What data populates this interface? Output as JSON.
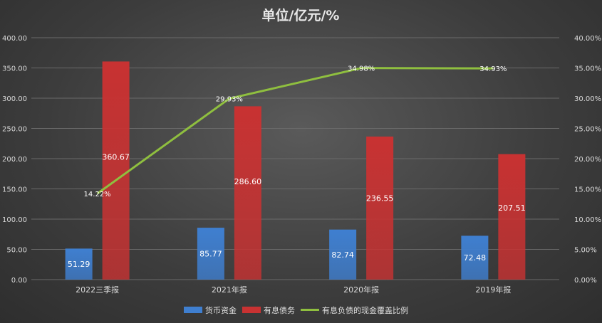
{
  "chart_data": {
    "type": "bar",
    "title": "单位/亿元/%",
    "categories": [
      "2022三季报",
      "2021年报",
      "2020年报",
      "2019年报"
    ],
    "series": [
      {
        "name": "货币资金",
        "kind": "bar",
        "axis": "left",
        "color": "#3f7fd0",
        "values": [
          51.29,
          85.77,
          82.74,
          72.48
        ],
        "labels": [
          "51.29",
          "85.77",
          "82.74",
          "72.48"
        ]
      },
      {
        "name": "有息债务",
        "kind": "bar",
        "axis": "left",
        "color": "#c83232",
        "values": [
          360.67,
          286.6,
          236.55,
          207.51
        ],
        "labels": [
          "360.67",
          "286.60",
          "236.55",
          "207.51"
        ]
      },
      {
        "name": "有息负债的现金覆盖比例",
        "kind": "line",
        "axis": "right",
        "color": "#8fbf3f",
        "values": [
          14.22,
          29.93,
          34.98,
          34.93
        ],
        "labels": [
          "14.22%",
          "29.93%",
          "34.98%",
          "34.93%"
        ]
      }
    ],
    "ylim": [
      0,
      400
    ],
    "y2lim": [
      0,
      40
    ],
    "y_ticks": [
      "0.00",
      "50.00",
      "100.00",
      "150.00",
      "200.00",
      "250.00",
      "300.00",
      "350.00",
      "400.00"
    ],
    "y2_ticks": [
      "0.00%",
      "5.00%",
      "10.00%",
      "15.00%",
      "20.00%",
      "25.00%",
      "30.00%",
      "35.00%",
      "40.00%"
    ],
    "grid": true,
    "legend_position": "bottom"
  }
}
